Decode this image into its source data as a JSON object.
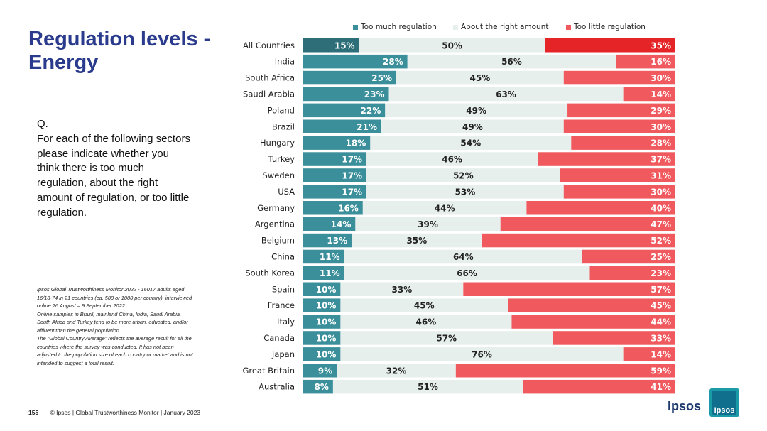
{
  "page": {
    "title": "Regulation levels - Energy",
    "question": [
      "Q.",
      "For each of the following sectors",
      "please indicate whether you",
      "think there is too much",
      "regulation, about the right",
      "amount of regulation, or too little",
      "regulation."
    ],
    "methodology": [
      "Ipsos Global Trustworthiness Monitor 2022 - 16017 adults aged",
      "16/18-74 in 21 countries (ca. 500 or 1000 per country), interviewed",
      "online 26 August – 9 September 2022",
      "Online samples in Brazil, mainland China, India, Saudi Arabia,",
      "South Africa and Turkey tend to be more urban, educated, and/or",
      "affluent than the general population.",
      "The “Global Country Average” reflects the average result for all the",
      "countries where the survey was conducted. It has not been",
      "adjusted to the population size of each country or market and is not",
      "intended to suggest a total result."
    ],
    "footer": {
      "page_number": "155",
      "text": "© Ipsos | Global Trustworthiness Monitor | January 2023"
    },
    "logo": {
      "wordmark": "Ipsos",
      "mark_text": "Ipsos"
    }
  },
  "colors": {
    "too_much": "#3a8f9b",
    "too_much_highlight": "#2d6e78",
    "about_right": "#e6efec",
    "too_little": "#f05a5e",
    "too_little_highlight": "#e52428",
    "label_light": "#ffffff",
    "label_dark": "#222222"
  },
  "chart_data": {
    "type": "bar",
    "orientation": "horizontal",
    "stacked": true,
    "percent_stacked": true,
    "title": "Regulation levels - Energy",
    "legend_position": "top",
    "series": [
      {
        "name": "Too much regulation",
        "values": [
          15,
          28,
          25,
          23,
          22,
          21,
          18,
          17,
          17,
          17,
          16,
          14,
          13,
          11,
          11,
          10,
          10,
          10,
          10,
          10,
          9,
          8
        ]
      },
      {
        "name": "About the right amount",
        "values": [
          50,
          56,
          45,
          63,
          49,
          49,
          54,
          46,
          52,
          53,
          44,
          39,
          35,
          64,
          66,
          33,
          45,
          46,
          57,
          76,
          32,
          51
        ]
      },
      {
        "name": "Too little regulation",
        "values": [
          35,
          16,
          30,
          14,
          29,
          30,
          28,
          37,
          31,
          30,
          40,
          47,
          52,
          25,
          23,
          57,
          45,
          44,
          33,
          14,
          59,
          41
        ]
      }
    ],
    "categories": [
      "All Countries",
      "India",
      "South Africa",
      "Saudi Arabia",
      "Poland",
      "Brazil",
      "Hungary",
      "Turkey",
      "Sweden",
      "USA",
      "Germany",
      "Argentina",
      "Belgium",
      "China",
      "South Korea",
      "Spain",
      "France",
      "Italy",
      "Canada",
      "Japan",
      "Great Britain",
      "Australia"
    ],
    "highlight_category": "All Countries"
  }
}
